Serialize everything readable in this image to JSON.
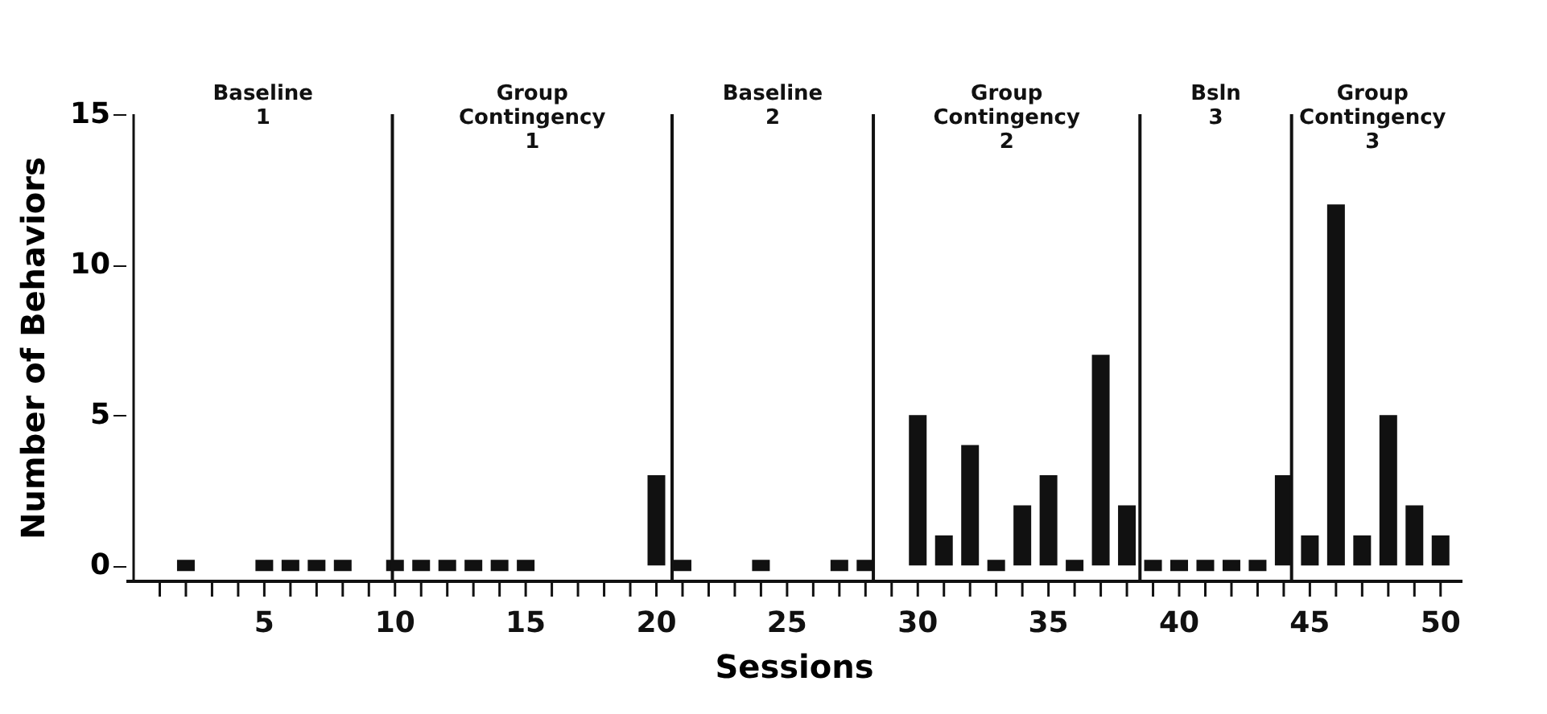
{
  "chart_data": {
    "type": "bar",
    "xlabel": "Sessions",
    "ylabel": "Number of Behaviors",
    "x": [
      2,
      5,
      6,
      7,
      8,
      10,
      11,
      12,
      13,
      14,
      15,
      20,
      21,
      24,
      27,
      28,
      30,
      31,
      32,
      33,
      34,
      35,
      36,
      37,
      38,
      39,
      40,
      41,
      42,
      43,
      44,
      45,
      46,
      47,
      48,
      49,
      50
    ],
    "values": [
      0,
      0,
      0,
      0,
      0,
      0,
      0,
      0,
      0,
      0,
      0,
      3,
      0,
      0,
      0,
      0,
      5,
      1,
      4,
      0,
      2,
      3,
      0,
      7,
      2,
      0,
      0,
      0,
      0,
      0,
      3,
      1,
      12,
      1,
      5,
      2,
      1
    ],
    "color": "#111111",
    "xlim": [
      0,
      50.5
    ],
    "xticks": [
      {
        "value": 1,
        "label": null
      },
      {
        "value": 2,
        "label": null
      },
      {
        "value": 3,
        "label": null
      },
      {
        "value": 4,
        "label": null
      },
      5,
      {
        "value": 6,
        "label": null
      },
      {
        "value": 7,
        "label": null
      },
      {
        "value": 8,
        "label": null
      },
      {
        "value": 9,
        "label": null
      },
      10,
      {
        "value": 11,
        "label": null
      },
      {
        "value": 12,
        "label": null
      },
      {
        "value": 13,
        "label": null
      },
      {
        "value": 14,
        "label": null
      },
      15,
      {
        "value": 16,
        "label": null
      },
      {
        "value": 17,
        "label": null
      },
      {
        "value": 18,
        "label": null
      },
      {
        "value": 19,
        "label": null
      },
      20,
      {
        "value": 21,
        "label": null
      },
      {
        "value": 22,
        "label": null
      },
      {
        "value": 23,
        "label": null
      },
      {
        "value": 24,
        "label": null
      },
      25,
      {
        "value": 26,
        "label": null
      },
      {
        "value": 27,
        "label": null
      },
      {
        "value": 28,
        "label": null
      },
      {
        "value": 29,
        "label": null
      },
      30,
      {
        "value": 31,
        "label": null
      },
      {
        "value": 32,
        "label": null
      },
      {
        "value": 33,
        "label": null
      },
      {
        "value": 34,
        "label": null
      },
      35,
      {
        "value": 36,
        "label": null
      },
      {
        "value": 37,
        "label": null
      },
      {
        "value": 38,
        "label": null
      },
      {
        "value": 39,
        "label": null
      },
      40,
      {
        "value": 41,
        "label": null
      },
      {
        "value": 42,
        "label": null
      },
      {
        "value": 43,
        "label": null
      },
      {
        "value": 44,
        "label": null
      },
      45,
      {
        "value": 46,
        "label": null
      },
      {
        "value": 47,
        "label": null
      },
      {
        "value": 48,
        "label": null
      },
      {
        "value": 49,
        "label": null
      },
      50
    ],
    "ylim": [
      -0.5,
      15
    ],
    "yticks": [
      0,
      5,
      10,
      15
    ],
    "ref_lines": [
      {
        "axis": "x",
        "value": 9.9,
        "label": null
      },
      {
        "axis": "x",
        "value": 20.6,
        "label": null
      },
      {
        "axis": "x",
        "value": 28.3,
        "label": null
      },
      {
        "axis": "x",
        "value": 38.5,
        "label": null
      },
      {
        "axis": "x",
        "value": 44.3,
        "label": null
      }
    ],
    "annotations": [
      "Baseline\n1",
      "Group\nContingency\n1",
      "Baseline\n2",
      "Group\nContingency\n2",
      "Bsln\n3",
      "Group\nContingency\n3"
    ],
    "grid": false
  }
}
